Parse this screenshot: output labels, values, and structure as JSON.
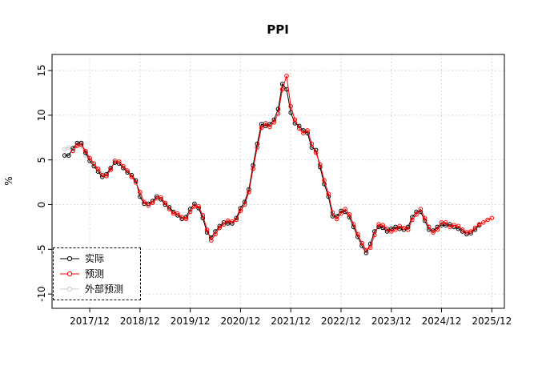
{
  "chart_data": {
    "type": "line",
    "title": "PPI",
    "xlabel": "",
    "ylabel": "%",
    "ylim": [
      -10,
      15
    ],
    "yticks": [
      -10,
      -5,
      0,
      5,
      10,
      15
    ],
    "xtick_labels": [
      "2017/12",
      "2018/12",
      "2019/12",
      "2020/12",
      "2021/12",
      "2022/12",
      "2023/12",
      "2024/12",
      "2025/12"
    ],
    "x_range": [
      "2017/06",
      "2025/12"
    ],
    "x_unit": "month",
    "grid": true,
    "grid_style": "dotted",
    "legend_position": "bottom-left",
    "marker": "open-circle",
    "series": [
      {
        "name": "实际",
        "color": "#000000",
        "start": "2017/06",
        "values": [
          5.5,
          5.5,
          6.3,
          6.9,
          6.9,
          5.8,
          4.9,
          4.3,
          3.7,
          3.1,
          3.4,
          4.1,
          4.7,
          4.6,
          4.1,
          3.6,
          3.3,
          2.7,
          0.9,
          0.1,
          0.1,
          0.4,
          0.9,
          0.6,
          0.0,
          -0.3,
          -0.8,
          -1.2,
          -1.6,
          -1.4,
          -0.5,
          0.1,
          -0.4,
          -1.5,
          -3.1,
          -3.7,
          -3.0,
          -2.4,
          -2.0,
          -2.1,
          -2.1,
          -1.5,
          -0.4,
          0.3,
          1.7,
          4.4,
          6.8,
          9.0,
          8.8,
          9.0,
          9.5,
          10.7,
          13.5,
          12.9,
          10.3,
          9.1,
          8.8,
          8.3,
          8.0,
          6.4,
          6.1,
          4.2,
          2.3,
          0.9,
          -1.3,
          -1.3,
          -0.7,
          -0.8,
          -1.4,
          -2.5,
          -3.6,
          -4.6,
          -5.4,
          -4.4,
          -3.0,
          -2.5,
          -2.6,
          -3.0,
          -2.7,
          -2.5,
          -2.7,
          -2.8,
          -2.5,
          -1.4,
          -0.8,
          -0.8,
          -1.8,
          -2.8,
          -2.9,
          -2.5,
          -2.3,
          -2.3,
          -2.2,
          -2.5,
          -2.7,
          -3.0,
          -3.3,
          -3.2,
          -2.8,
          -2.3
        ]
      },
      {
        "name": "预测",
        "color": "#ff0000",
        "start": "2017/08",
        "values": [
          6.0,
          6.6,
          6.7,
          6.0,
          5.2,
          4.6,
          4.0,
          3.3,
          3.2,
          3.9,
          4.9,
          4.8,
          4.3,
          3.8,
          3.1,
          2.5,
          1.4,
          0.3,
          -0.1,
          0.2,
          0.7,
          0.8,
          0.2,
          -0.5,
          -1.0,
          -1.0,
          -1.4,
          -1.6,
          -0.8,
          -0.2,
          -0.2,
          -1.2,
          -2.8,
          -4.0,
          -3.3,
          -2.6,
          -2.2,
          -1.8,
          -1.9,
          -1.7,
          -0.7,
          0.0,
          1.4,
          4.0,
          6.4,
          8.6,
          9.1,
          8.7,
          9.2,
          10.2,
          12.9,
          14.4,
          11.0,
          9.5,
          8.5,
          8.0,
          8.3,
          6.8,
          5.8,
          4.5,
          2.7,
          1.2,
          -0.9,
          -1.6,
          -1.0,
          -0.5,
          -1.1,
          -2.2,
          -3.3,
          -4.3,
          -5.1,
          -4.8,
          -3.4,
          -2.2,
          -2.3,
          -2.7,
          -3.0,
          -2.8,
          -2.4,
          -2.6,
          -2.8,
          -1.7,
          -1.1,
          -0.5,
          -1.5,
          -2.5,
          -3.1,
          -2.8,
          -2.0,
          -2.0,
          -2.5,
          -2.3,
          -2.4,
          -2.8,
          -3.1,
          -3.0,
          -2.6,
          -2.2,
          -2.0,
          -1.7,
          -1.5
        ]
      },
      {
        "name": "外部预测",
        "color": "#c9c9c9",
        "start": "2017/06",
        "values": [
          6.2,
          6.4,
          6.1,
          6.6,
          6.5,
          5.5,
          5.2,
          4.6,
          4.0,
          3.5
        ]
      }
    ]
  }
}
